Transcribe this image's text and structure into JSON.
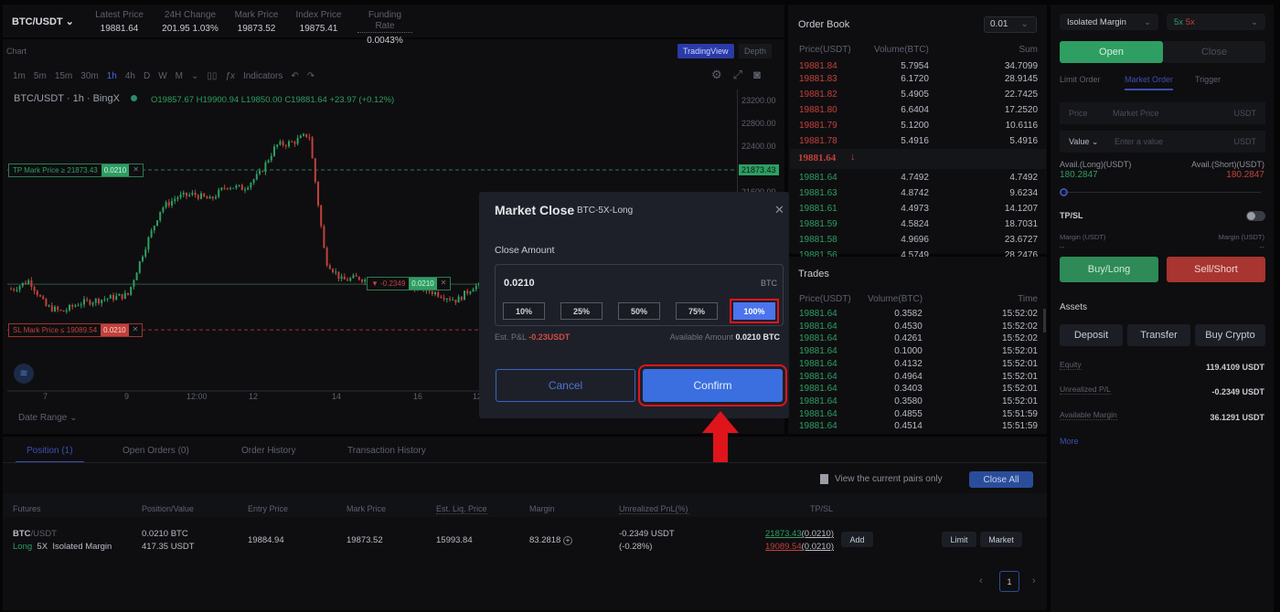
{
  "header": {
    "pair": "BTC/USDT",
    "stats": [
      {
        "label": "Latest Price",
        "value": "19881.64"
      },
      {
        "label": "24H Change",
        "value": "201.95 1.03%"
      },
      {
        "label": "Mark Price",
        "value": "19873.52"
      },
      {
        "label": "Index Price",
        "value": "19875.41"
      },
      {
        "label": "Funding Rate",
        "value": "0.0043%"
      }
    ]
  },
  "chart": {
    "title": "Chart",
    "view_tabs": [
      "TradingView",
      "Depth"
    ],
    "timeframes": [
      "1m",
      "5m",
      "15m",
      "30m",
      "1h",
      "4h",
      "D",
      "W",
      "M"
    ],
    "active_timeframe": "1h",
    "indicators_label": "Indicators",
    "legend_symbol": "BTC/USDT · 1h · BingX",
    "ohlc": "O19857.67 H19900.94 L19850.00 C19881.64 +23.97 (+0.12%)",
    "price_ticks": [
      "23200.00",
      "22800.00",
      "22400.00",
      "21600.00"
    ],
    "date_ticks": [
      "7",
      "9",
      "12:00",
      "12",
      "14",
      "16",
      "12:0"
    ],
    "tp_label": "TP Mark Price ≥ 21873.43",
    "tp_qty": "0.0210",
    "tp_price_tag": "21873.43",
    "sl_label": "SL Mark Price ≤ 19089.54",
    "sl_qty": "0.0210",
    "pos_pnl": "▼ -0.2349",
    "pos_qty": "0.0210",
    "date_range": "Date Range",
    "price_path": [
      19800,
      19950,
      19500,
      19400,
      19550,
      19600,
      19650,
      19700,
      20500,
      21200,
      21400,
      21450,
      21350,
      21600,
      21550,
      21800,
      22300,
      22350,
      22500,
      20300,
      19950,
      20000,
      19900,
      19950,
      19850,
      19800,
      19700,
      19600,
      19850,
      19850,
      19800,
      19900,
      19850,
      19870,
      19900,
      19880,
      19860,
      19890,
      19870,
      19880,
      19900,
      19870,
      19860,
      19880,
      19881.64
    ]
  },
  "orderbook": {
    "title": "Order Book",
    "precision": "0.01",
    "columns": [
      "Price(USDT)",
      "Volume(BTC)",
      "Sum"
    ],
    "asks": [
      [
        "19881.84",
        "5.7954",
        "34.7099"
      ],
      [
        "19881.83",
        "6.1720",
        "28.9145"
      ],
      [
        "19881.82",
        "5.4905",
        "22.7425"
      ],
      [
        "19881.80",
        "6.6404",
        "17.2520"
      ],
      [
        "19881.79",
        "5.1200",
        "10.6116"
      ],
      [
        "19881.78",
        "5.4916",
        "5.4916"
      ]
    ],
    "last_price": "19881.64",
    "bids": [
      [
        "19881.64",
        "4.7492",
        "4.7492"
      ],
      [
        "19881.63",
        "4.8742",
        "9.6234"
      ],
      [
        "19881.61",
        "4.4973",
        "14.1207"
      ],
      [
        "19881.59",
        "4.5824",
        "18.7031"
      ],
      [
        "19881.58",
        "4.9696",
        "23.6727"
      ],
      [
        "19881.56",
        "4.5749",
        "28.2476"
      ]
    ]
  },
  "trades": {
    "title": "Trades",
    "columns": [
      "Price(USDT)",
      "Volume(BTC)",
      "Time"
    ],
    "rows": [
      [
        "19881.64",
        "0.3582",
        "15:52:02"
      ],
      [
        "19881.64",
        "0.4530",
        "15:52:02"
      ],
      [
        "19881.64",
        "0.4261",
        "15:52:02"
      ],
      [
        "19881.64",
        "0.1000",
        "15:52:01"
      ],
      [
        "19881.64",
        "0.4132",
        "15:52:01"
      ],
      [
        "19881.64",
        "0.4964",
        "15:52:01"
      ],
      [
        "19881.64",
        "0.3403",
        "15:52:01"
      ],
      [
        "19881.64",
        "0.3580",
        "15:52:01"
      ],
      [
        "19881.64",
        "0.4855",
        "15:51:59"
      ],
      [
        "19881.64",
        "0.4514",
        "15:51:59"
      ]
    ]
  },
  "order_panel": {
    "margin_mode": "Isolated Margin",
    "lev_long": "5x",
    "lev_short": "5x",
    "open": "Open",
    "close": "Close",
    "order_types": [
      "Limit Order",
      "Market Order",
      "Trigger"
    ],
    "price_label": "Price",
    "price_value": "Market Price",
    "unit": "USDT",
    "value_label": "Value",
    "value_placeholder": "Enter a value",
    "avail_long_label": "Avail.(Long)(USDT)",
    "avail_long": "180.2847",
    "avail_short_label": "Avail.(Short)(USDT)",
    "avail_short": "180.2847",
    "slider_value_percent": 0,
    "tpsl": "TP/SL",
    "margin_label": "Margin (USDT)",
    "margin_long": "--",
    "margin_short": "--",
    "buy": "Buy/Long",
    "sell": "Sell/Short"
  },
  "assets": {
    "title": "Assets",
    "buttons": [
      "Deposit",
      "Transfer",
      "Buy Crypto"
    ],
    "rows": [
      {
        "label": "Equity",
        "value": "119.4109 USDT"
      },
      {
        "label": "Unrealized P/L",
        "value": "-0.2349 USDT"
      },
      {
        "label": "Available Margin",
        "value": "36.1291 USDT"
      }
    ],
    "more": "More"
  },
  "positions": {
    "tabs": [
      "Position (1)",
      "Open Orders (0)",
      "Order History",
      "Transaction History"
    ],
    "filter_label": "View the current pairs only",
    "close_all": "Close All",
    "columns": [
      "Futures",
      "Position/Value",
      "Entry Price",
      "Mark Price",
      "Est. Liq. Price",
      "Margin",
      "Unrealized PnL(%)",
      "TP/SL"
    ],
    "row": {
      "pair_base": "BTC",
      "pair_quote": "/USDT",
      "side": "Long",
      "leverage": "5X",
      "mode": "Isolated Margin",
      "position": "0.0210 BTC",
      "value": "417.35 USDT",
      "entry": "19884.94",
      "mark": "19873.52",
      "liq": "15993.84",
      "margin": "83.2818",
      "pnl": "-0.2349 USDT",
      "pnl_pct": "(-0.28%)",
      "tp": "21873.43",
      "tp_qty": "(0.0210)",
      "sl": "19089.54",
      "sl_qty": "(0.0210)",
      "add": "Add",
      "limit": "Limit",
      "market": "Market"
    },
    "page": "1"
  },
  "modal": {
    "title": "Market Close",
    "subtitle": "BTC-5X-Long",
    "amount_label": "Close Amount",
    "amount": "0.0210",
    "unit": "BTC",
    "percents": [
      "10%",
      "25%",
      "50%",
      "75%",
      "100%"
    ],
    "selected_percent": "100%",
    "pnl_label": "Est. P&L",
    "pnl": "-0.23USDT",
    "avail_label": "Available Amount",
    "avail": "0.0210 BTC",
    "cancel": "Cancel",
    "confirm": "Confirm"
  },
  "colors": {
    "green": "#2e9e62",
    "red": "#c2413b",
    "accent": "#3b6fe0",
    "highlight": "#e0141b"
  }
}
